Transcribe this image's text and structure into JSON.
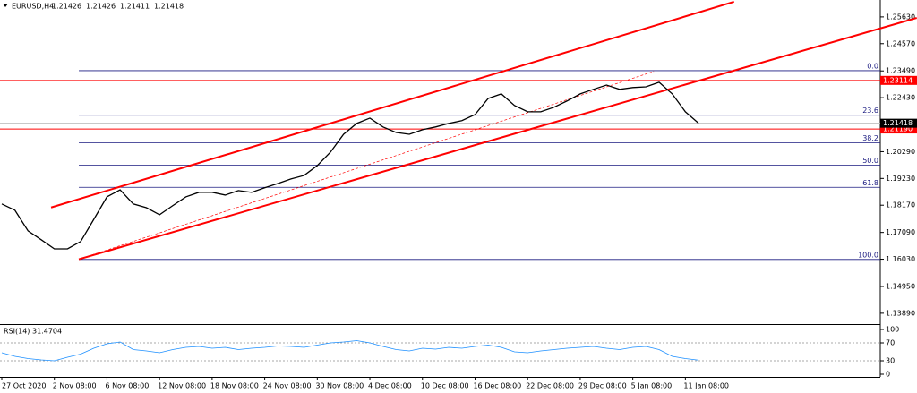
{
  "chart_data": [
    {
      "type": "line",
      "symbol": "EURUSD,H4",
      "ohlc": [
        1.21426,
        1.21426,
        1.21411,
        1.21418
      ],
      "color": "#000000",
      "categories": [
        "27 Oct 2020",
        null,
        null,
        null,
        "2 Nov 08:00",
        null,
        null,
        null,
        "6 Nov 08:00",
        null,
        null,
        null,
        "12 Nov 08:00",
        null,
        null,
        null,
        "18 Nov 08:00",
        null,
        null,
        null,
        "24 Nov 08:00",
        null,
        null,
        null,
        "30 Nov 08:00",
        null,
        null,
        null,
        "4 Dec 08:00",
        null,
        null,
        null,
        "10 Dec 08:00",
        null,
        null,
        null,
        "16 Dec 08:00",
        null,
        null,
        null,
        "22 Dec 08:00",
        null,
        null,
        null,
        "29 Dec 08:00",
        null,
        null,
        null,
        "5 Jan 08:00",
        null,
        null,
        null,
        "11 Jan 08:00",
        null
      ],
      "values": [
        1.1822,
        1.1797,
        1.1715,
        1.168,
        1.1644,
        1.1644,
        1.1673,
        1.1761,
        1.185,
        1.1878,
        1.1822,
        1.1807,
        1.1779,
        1.1815,
        1.185,
        1.1868,
        1.1868,
        1.1857,
        1.1875,
        1.1868,
        1.1886,
        1.1903,
        1.1921,
        1.1935,
        1.1974,
        1.2027,
        1.2098,
        1.2141,
        1.2162,
        1.2127,
        1.2105,
        1.2098,
        1.2116,
        1.2127,
        1.2141,
        1.2152,
        1.2176,
        1.224,
        1.2258,
        1.2212,
        1.2187,
        1.2187,
        1.2205,
        1.223,
        1.2258,
        1.2276,
        1.2293,
        1.2276,
        1.2283,
        1.2286,
        1.2304,
        1.2258,
        1.2187,
        1.2142
      ],
      "ylim": [
        1.1346,
        1.263
      ],
      "yticks": [
        {
          "value": 1.2563,
          "label": "1.25630"
        },
        {
          "value": 1.2457,
          "label": "1.24570"
        },
        {
          "value": 1.2349,
          "label": "1.23490"
        },
        {
          "value": 1.2243,
          "label": "1.22430"
        },
        {
          "value": 1.2029,
          "label": "1.20290"
        },
        {
          "value": 1.1923,
          "label": "1.19230"
        },
        {
          "value": 1.1817,
          "label": "1.18170"
        },
        {
          "value": 1.1709,
          "label": "1.17090"
        },
        {
          "value": 1.1603,
          "label": "1.16030"
        },
        {
          "value": 1.1495,
          "label": "1.14950"
        },
        {
          "value": 1.1389,
          "label": "1.13890"
        }
      ],
      "hlines": [
        {
          "value": 1.23114,
          "label": "1.23114",
          "color": "#ff0000"
        },
        {
          "value": 1.2119,
          "label": "1.21190",
          "color": "#ff0000"
        }
      ],
      "fibonacci": {
        "high": 1.235,
        "low": 1.1602,
        "color": "#1a1a80",
        "levels": [
          {
            "value": 0,
            "label": "0.0"
          },
          {
            "value": 23.6,
            "label": "23.6"
          },
          {
            "value": 38.2,
            "label": "38.2"
          },
          {
            "value": 50,
            "label": "50.0"
          },
          {
            "value": 61.8,
            "label": "61.8"
          },
          {
            "value": 100,
            "label": "100.0"
          }
        ]
      },
      "trendlines": [
        {
          "color": "#ff0000",
          "points": [
            [
              5.86,
              1.1603
            ],
            [
              69.6,
              1.2559
            ]
          ]
        },
        {
          "color": "#ff0000",
          "points": [
            [
              3.75,
              1.1808
            ],
            [
              55.7,
              1.2623
            ]
          ]
        },
        {
          "color": "#ff0000",
          "dashed": true,
          "points": [
            [
              5.86,
              1.1603
            ],
            [
              49.6,
              1.2347
            ]
          ]
        }
      ]
    },
    {
      "type": "line",
      "title": "RSI(14)",
      "color": "#1e90ff",
      "values": [
        48,
        40,
        35,
        32,
        30,
        38,
        45,
        58,
        68,
        72,
        55,
        52,
        48,
        55,
        60,
        62,
        58,
        60,
        55,
        58,
        60,
        63,
        62,
        60,
        65,
        70,
        72,
        75,
        70,
        62,
        55,
        52,
        58,
        56,
        60,
        58,
        62,
        65,
        60,
        50,
        48,
        52,
        55,
        58,
        60,
        62,
        58,
        55,
        60,
        62,
        55,
        40,
        35,
        31.4704
      ],
      "ylim": [
        0,
        100
      ],
      "yticks": [
        100,
        70,
        30,
        0
      ],
      "levels": [
        70,
        30
      ]
    }
  ]
}
